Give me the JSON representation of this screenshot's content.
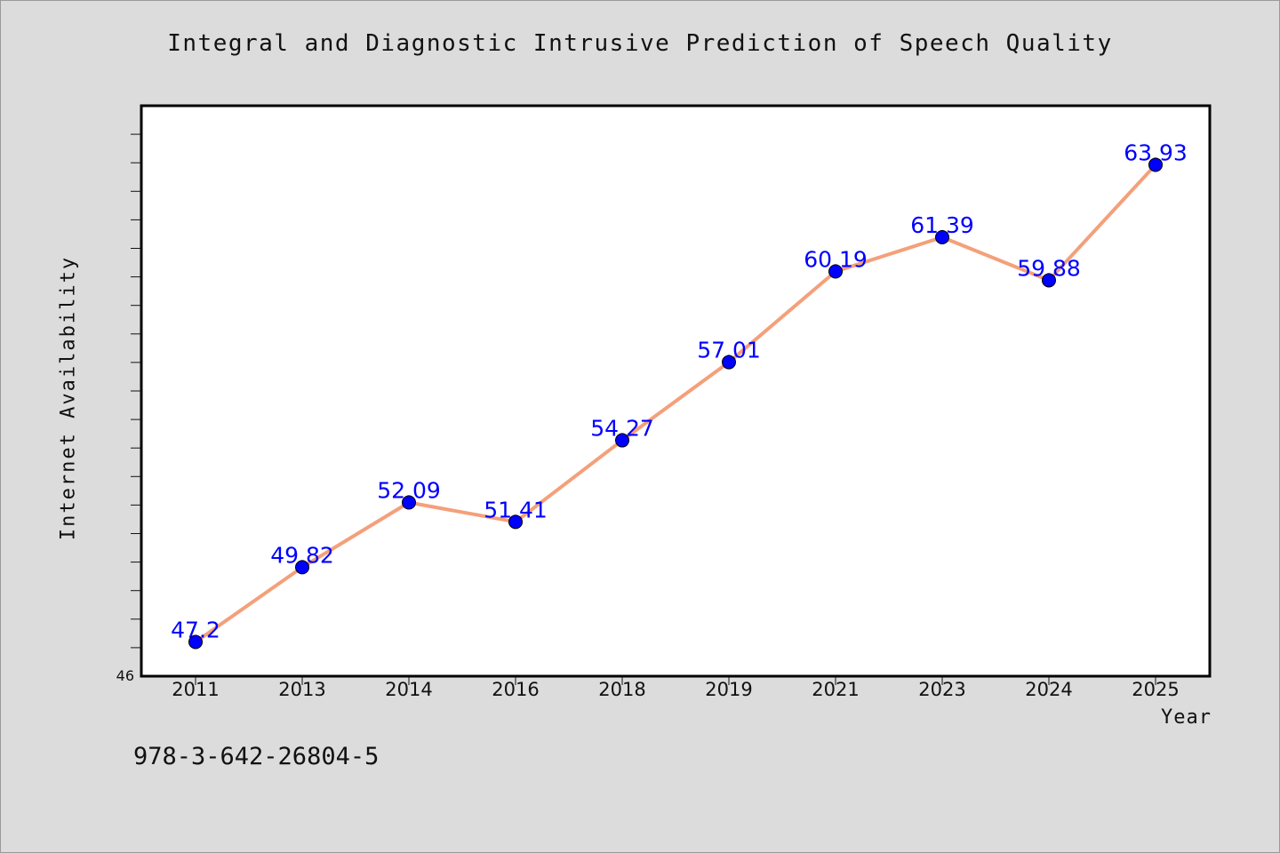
{
  "chart_title": "Integral and Diagnostic Intrusive Prediction of Speech Quality",
  "footer_id": "978-3-642-26804-5",
  "chart_data": {
    "type": "line",
    "title": "Integral and Diagnostic Intrusive Prediction of Speech Quality",
    "xlabel": "Year",
    "ylabel": "Internet Availability",
    "categories": [
      "2011",
      "2013",
      "2014",
      "2016",
      "2018",
      "2019",
      "2021",
      "2023",
      "2024",
      "2025"
    ],
    "values": [
      47.2,
      49.82,
      52.09,
      51.41,
      54.27,
      57.01,
      60.19,
      61.39,
      59.88,
      63.93
    ],
    "data_labels": [
      "47.2",
      "49.82",
      "52.09",
      "51.41",
      "54.27",
      "57.01",
      "60.19",
      "61.39",
      "59.88",
      "63.93"
    ],
    "ylim": [
      46,
      66
    ],
    "y_tick_labels": [
      "46"
    ],
    "grid": false,
    "legend": "none",
    "line_color": "#f4a07a",
    "marker_color": "#0000ff",
    "label_color": "#0000ff",
    "plot_background": "#ffffff",
    "page_background": "#dcdcdc"
  }
}
